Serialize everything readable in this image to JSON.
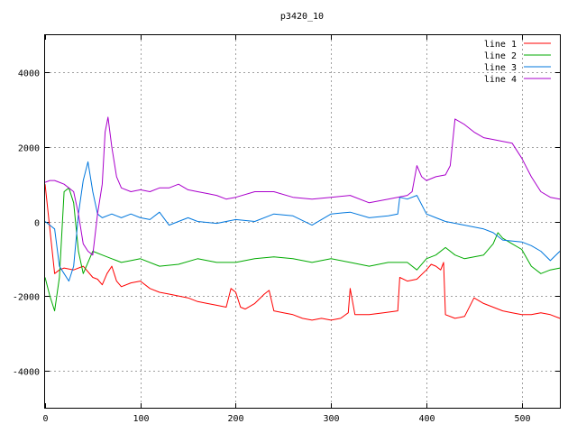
{
  "chart_data": {
    "type": "line",
    "title": "p3420_10",
    "xlabel": "",
    "ylabel": "",
    "xlim": [
      0,
      540
    ],
    "ylim": [
      -5000,
      5000
    ],
    "xticks": [
      0,
      100,
      200,
      300,
      400,
      500
    ],
    "yticks": [
      -4000,
      -2000,
      0,
      2000,
      4000
    ],
    "grid": true,
    "legend_position": "top-right",
    "series": [
      {
        "name": "line 1",
        "color": "#ff0000",
        "x": [
          0,
          5,
          10,
          15,
          20,
          30,
          40,
          50,
          55,
          60,
          65,
          70,
          75,
          80,
          90,
          100,
          110,
          120,
          130,
          140,
          150,
          160,
          170,
          180,
          190,
          195,
          200,
          205,
          210,
          220,
          230,
          235,
          240,
          250,
          260,
          270,
          280,
          290,
          300,
          310,
          318,
          320,
          325,
          340,
          355,
          370,
          372,
          380,
          390,
          400,
          405,
          410,
          415,
          418,
          420,
          430,
          440,
          450,
          460,
          470,
          480,
          490,
          500,
          510,
          520,
          530,
          540
        ],
        "y": [
          1000,
          -200,
          -1400,
          -1300,
          -1250,
          -1300,
          -1200,
          -1500,
          -1550,
          -1700,
          -1400,
          -1200,
          -1600,
          -1750,
          -1650,
          -1600,
          -1800,
          -1900,
          -1950,
          -2000,
          -2050,
          -2150,
          -2200,
          -2250,
          -2300,
          -1800,
          -1900,
          -2300,
          -2350,
          -2200,
          -1950,
          -1850,
          -2400,
          -2450,
          -2500,
          -2600,
          -2650,
          -2600,
          -2650,
          -2600,
          -2450,
          -1800,
          -2500,
          -2500,
          -2450,
          -2400,
          -1500,
          -1600,
          -1550,
          -1300,
          -1150,
          -1200,
          -1300,
          -1100,
          -2500,
          -2600,
          -2550,
          -2050,
          -2200,
          -2300,
          -2400,
          -2450,
          -2500,
          -2500,
          -2450,
          -2500,
          -2600
        ]
      },
      {
        "name": "line 2",
        "color": "#00aa00",
        "x": [
          0,
          5,
          10,
          15,
          20,
          25,
          30,
          35,
          40,
          45,
          50,
          60,
          70,
          80,
          90,
          100,
          120,
          140,
          160,
          180,
          200,
          220,
          240,
          260,
          280,
          300,
          320,
          340,
          360,
          380,
          390,
          400,
          410,
          420,
          430,
          440,
          450,
          460,
          470,
          475,
          480,
          490,
          500,
          510,
          520,
          530,
          540
        ],
        "y": [
          -1500,
          -2000,
          -2400,
          -1500,
          800,
          900,
          500,
          -800,
          -1400,
          -1100,
          -800,
          -900,
          -1000,
          -1100,
          -1050,
          -1000,
          -1200,
          -1150,
          -1000,
          -1100,
          -1100,
          -1000,
          -950,
          -1000,
          -1100,
          -1000,
          -1100,
          -1200,
          -1100,
          -1100,
          -1300,
          -1000,
          -900,
          -700,
          -900,
          -1000,
          -950,
          -900,
          -600,
          -300,
          -450,
          -600,
          -750,
          -1200,
          -1400,
          -1300,
          -1250
        ]
      },
      {
        "name": "line 3",
        "color": "#0077dd",
        "x": [
          0,
          5,
          10,
          15,
          20,
          25,
          30,
          35,
          40,
          45,
          50,
          55,
          60,
          70,
          80,
          90,
          100,
          110,
          120,
          130,
          140,
          150,
          160,
          180,
          200,
          220,
          240,
          260,
          280,
          300,
          320,
          340,
          360,
          370,
          372,
          380,
          390,
          400,
          410,
          420,
          440,
          460,
          470,
          480,
          500,
          510,
          520,
          530,
          540
        ],
        "y": [
          0,
          -100,
          -200,
          -1200,
          -1400,
          -1600,
          -1200,
          200,
          1100,
          1600,
          800,
          200,
          100,
          200,
          100,
          200,
          100,
          50,
          250,
          -100,
          0,
          100,
          0,
          -50,
          50,
          0,
          200,
          150,
          -100,
          200,
          250,
          100,
          150,
          200,
          650,
          600,
          700,
          200,
          100,
          0,
          -100,
          -200,
          -300,
          -500,
          -550,
          -650,
          -800,
          -1050,
          -800
        ]
      },
      {
        "name": "line 4",
        "color": "#aa00cc",
        "x": [
          0,
          5,
          10,
          15,
          20,
          30,
          35,
          40,
          45,
          50,
          55,
          60,
          63,
          66,
          70,
          75,
          80,
          90,
          100,
          110,
          120,
          130,
          140,
          150,
          160,
          170,
          180,
          190,
          200,
          220,
          240,
          260,
          280,
          300,
          320,
          340,
          360,
          380,
          385,
          390,
          395,
          400,
          410,
          420,
          425,
          430,
          440,
          450,
          460,
          470,
          480,
          490,
          500,
          510,
          520,
          530,
          540
        ],
        "y": [
          1050,
          1100,
          1100,
          1050,
          1000,
          800,
          200,
          -600,
          -800,
          -900,
          200,
          1000,
          2400,
          2800,
          2000,
          1200,
          900,
          800,
          850,
          800,
          900,
          900,
          1000,
          850,
          800,
          750,
          700,
          600,
          650,
          800,
          800,
          650,
          600,
          650,
          700,
          500,
          600,
          700,
          800,
          1500,
          1200,
          1100,
          1200,
          1250,
          1500,
          2750,
          2600,
          2400,
          2250,
          2200,
          2150,
          2100,
          1700,
          1200,
          800,
          650,
          600
        ]
      }
    ]
  }
}
